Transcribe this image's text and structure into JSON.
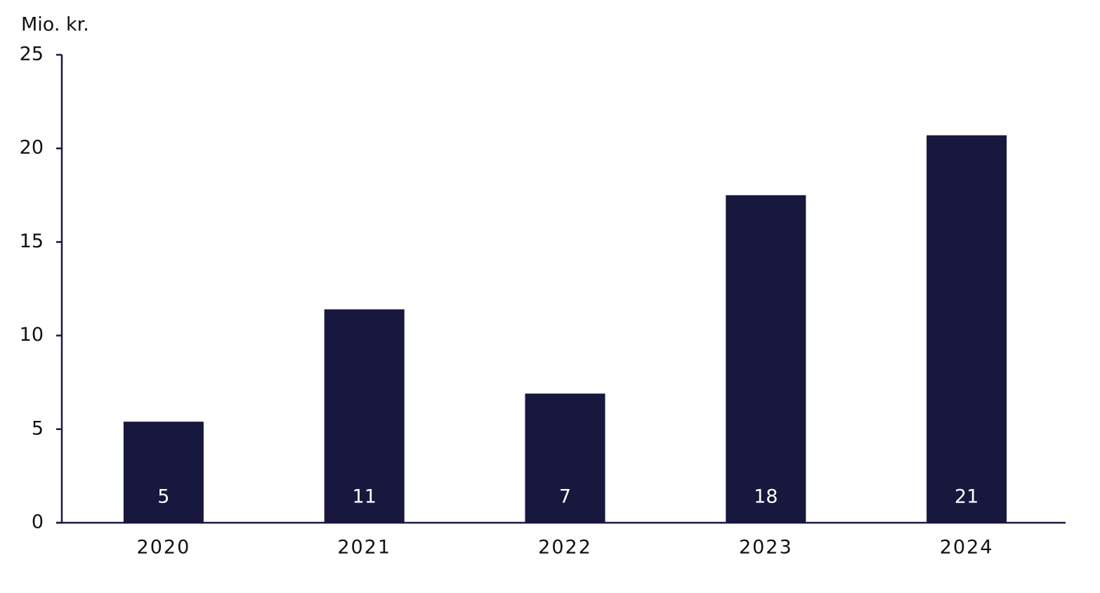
{
  "chart_data": {
    "type": "bar",
    "y_axis_label": "Mio. kr.",
    "categories": [
      "2020",
      "2021",
      "2022",
      "2023",
      "2024"
    ],
    "values": [
      5.4,
      11.4,
      6.9,
      17.5,
      20.7
    ],
    "value_labels": [
      "5",
      "11",
      "7",
      "18",
      "21"
    ],
    "color": "#18173e",
    "ylim": [
      0,
      25
    ],
    "yticks": [
      0,
      5,
      10,
      15,
      20,
      25
    ],
    "grid": false
  }
}
